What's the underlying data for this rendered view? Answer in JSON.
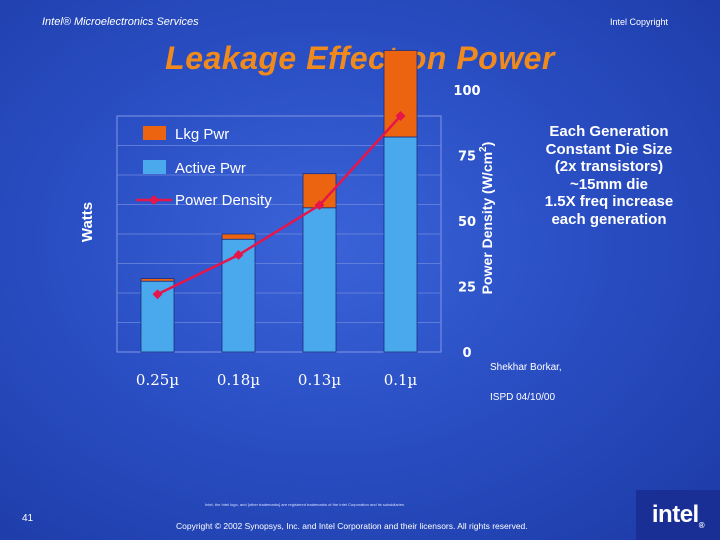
{
  "header": {
    "left": "Intel® Microelectronics Services",
    "right": "Intel Copyright"
  },
  "title": "Leakage Effect on Power",
  "chart_data": {
    "type": "bar",
    "categories": [
      "0.25µ",
      "0.18µ",
      "0.13µ",
      "0.1µ"
    ],
    "stacked": true,
    "series": [
      {
        "name": "Active Pwr",
        "kind": "bar",
        "values": [
          27,
          43,
          55,
          82
        ],
        "color": "#4aa8ec"
      },
      {
        "name": "Lkg Pwr",
        "kind": "bar",
        "values": [
          1,
          2,
          13,
          33
        ],
        "color": "#ec6410"
      },
      {
        "name": "Power Density",
        "kind": "line",
        "axis": "right",
        "values": [
          22,
          37,
          56,
          90
        ],
        "color": "#e6154a"
      }
    ],
    "ylabel": "Watts",
    "y_right_label": "Power Density (W/cm2)",
    "y_right_ticks": [
      "0",
      "25",
      "50",
      "75",
      "100"
    ],
    "ylim": [
      0,
      90
    ],
    "y_right_lim": [
      0,
      90
    ],
    "grid": true,
    "legend_position": "top-left"
  },
  "side_note": [
    "Each Generation",
    "Constant Die Size",
    "(2x transistors)",
    "~15mm die",
    "1.5X freq increase",
    "each generation"
  ],
  "credit": {
    "name": "Shekhar Borkar,",
    "date": "ISPD 04/10/00"
  },
  "slide_number": "41",
  "footer": {
    "line1": "Intel, the Intel logo, and [other trademarks] are registered trademarks of the Intel Corporation and its subsidiaries",
    "line2": "Copyright © 2002 Synopsys, Inc. and Intel Corporation and their licensors. All rights reserved."
  },
  "logo": {
    "text": "intel",
    "mark": "®"
  }
}
